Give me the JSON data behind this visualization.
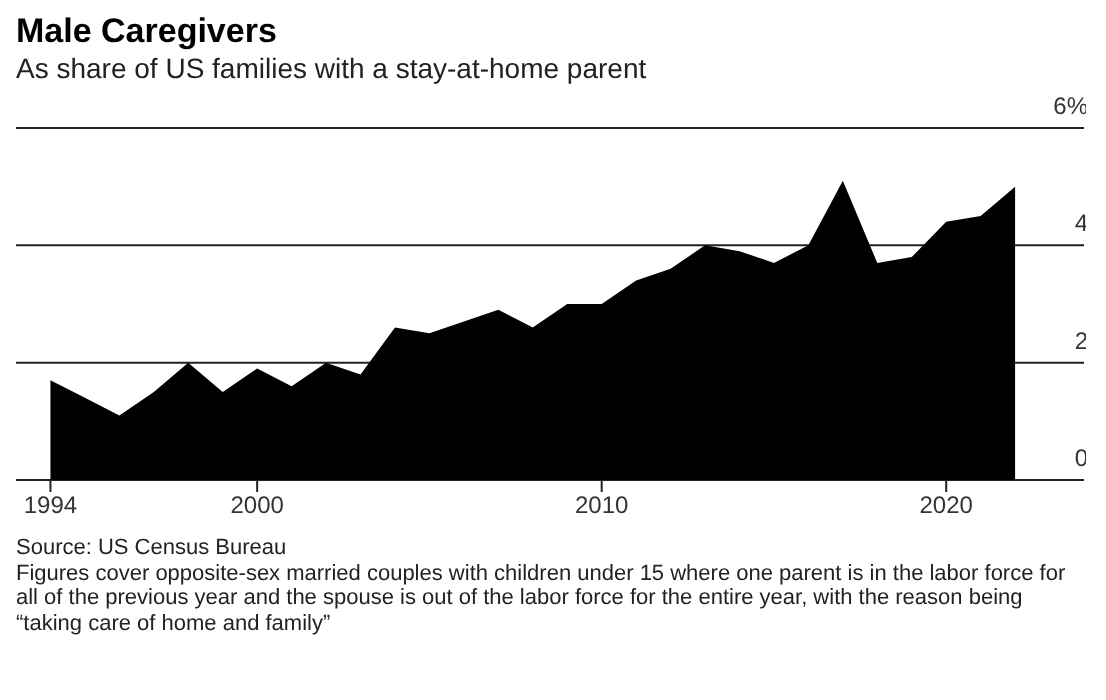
{
  "chart_data": {
    "type": "area",
    "title": "Male Caregivers",
    "subtitle": "As share of US families with a stay-at-home parent",
    "x": [
      1994,
      1995,
      1996,
      1997,
      1998,
      1999,
      2000,
      2001,
      2002,
      2003,
      2004,
      2005,
      2006,
      2007,
      2008,
      2009,
      2010,
      2011,
      2012,
      2013,
      2014,
      2015,
      2016,
      2017,
      2018,
      2019,
      2020,
      2021,
      2022
    ],
    "series": [
      {
        "color": "#000000",
        "values": [
          1.7,
          1.4,
          1.1,
          1.5,
          2.0,
          1.5,
          1.9,
          1.6,
          2.0,
          1.8,
          2.6,
          2.5,
          2.7,
          2.9,
          2.6,
          3.0,
          3.0,
          3.4,
          3.6,
          4.0,
          3.9,
          3.7,
          4.0,
          5.1,
          3.7,
          3.8,
          4.4,
          4.5,
          5.0
        ]
      }
    ],
    "xlim": [
      1993,
      2024
    ],
    "xticks": [
      1994,
      2000,
      2010,
      2020
    ],
    "ylim": [
      0,
      6
    ],
    "yticks": [
      0,
      2,
      4,
      {
        "value": 6,
        "label": "6%"
      }
    ],
    "grid": "y",
    "annotations": [
      "Source: US Census Bureau",
      "Figures cover opposite-sex married couples with children under 15 where one parent is in the labor force for all of the previous year and the spouse is out of the labor force for the entire year, with the reason being “taking care of home and family”"
    ]
  }
}
